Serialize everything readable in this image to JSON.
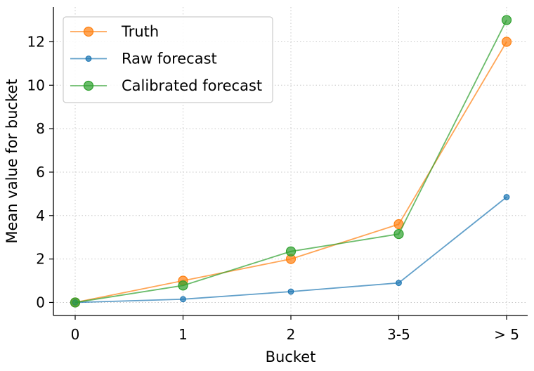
{
  "chart_data": {
    "type": "line",
    "categories": [
      "0",
      "1",
      "2",
      "3-5",
      "> 5"
    ],
    "xlabel": "Bucket",
    "ylabel": "Mean value for bucket",
    "ylim": [
      -0.6,
      13.6
    ],
    "yticks": [
      0,
      2,
      4,
      6,
      8,
      10,
      12
    ],
    "grid": true,
    "legend_position": "top-left",
    "series": [
      {
        "name": "Truth",
        "values": [
          0.0,
          1.0,
          2.0,
          3.6,
          12.0
        ],
        "color": "#ff7f0e",
        "marker": "large-circle"
      },
      {
        "name": "Raw forecast",
        "values": [
          0.0,
          0.15,
          0.5,
          0.9,
          4.85
        ],
        "color": "#1f77b4",
        "marker": "small-circle"
      },
      {
        "name": "Calibrated forecast",
        "values": [
          0.0,
          0.78,
          2.35,
          3.15,
          13.0
        ],
        "color": "#2ca02c",
        "marker": "large-circle"
      }
    ]
  }
}
